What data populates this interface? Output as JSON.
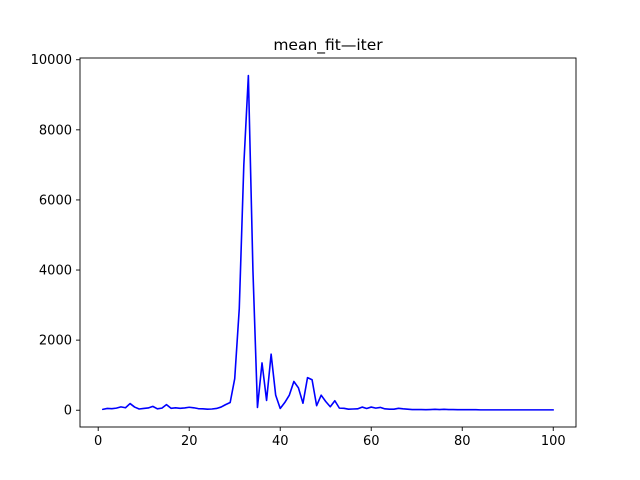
{
  "chart_data": {
    "type": "line",
    "title": "mean_fit—iter",
    "xlabel": "",
    "ylabel": "",
    "xlim": [
      -4,
      105
    ],
    "ylim": [
      -478.55,
      10049.55
    ],
    "xticks": [
      0,
      20,
      40,
      60,
      80,
      100
    ],
    "yticks": [
      0,
      2000,
      4000,
      6000,
      8000,
      10000
    ],
    "grid": false,
    "legend": null,
    "series": [
      {
        "name": "mean_fit",
        "color": "#0000ff",
        "x": [
          1,
          2,
          3,
          4,
          5,
          6,
          7,
          8,
          9,
          10,
          11,
          12,
          13,
          14,
          15,
          16,
          17,
          18,
          19,
          20,
          21,
          22,
          23,
          24,
          25,
          26,
          27,
          28,
          29,
          30,
          31,
          32,
          33,
          34,
          35,
          36,
          37,
          38,
          39,
          40,
          41,
          42,
          43,
          44,
          45,
          46,
          47,
          48,
          49,
          50,
          51,
          52,
          53,
          54,
          55,
          56,
          57,
          58,
          59,
          60,
          61,
          62,
          63,
          64,
          65,
          66,
          67,
          68,
          69,
          70,
          71,
          72,
          73,
          74,
          75,
          76,
          77,
          78,
          79,
          80,
          81,
          82,
          83,
          84,
          85,
          86,
          87,
          88,
          89,
          90,
          91,
          92,
          93,
          94,
          95,
          96,
          97,
          98,
          99,
          100
        ],
        "values": [
          25,
          50,
          45,
          60,
          95,
          70,
          190,
          90,
          35,
          50,
          65,
          110,
          40,
          60,
          160,
          55,
          70,
          55,
          65,
          85,
          70,
          45,
          40,
          30,
          35,
          50,
          90,
          160,
          220,
          900,
          2900,
          7000,
          9550,
          4000,
          80,
          1350,
          280,
          1600,
          430,
          50,
          220,
          430,
          820,
          640,
          200,
          930,
          870,
          130,
          430,
          250,
          100,
          270,
          60,
          55,
          30,
          35,
          40,
          90,
          50,
          90,
          60,
          80,
          40,
          30,
          30,
          55,
          40,
          30,
          20,
          20,
          20,
          15,
          20,
          25,
          20,
          25,
          20,
          20,
          15,
          15,
          15,
          15,
          15,
          10,
          10,
          10,
          10,
          10,
          10,
          10,
          10,
          10,
          10,
          10,
          10,
          10,
          10,
          10,
          10,
          10
        ]
      }
    ]
  }
}
